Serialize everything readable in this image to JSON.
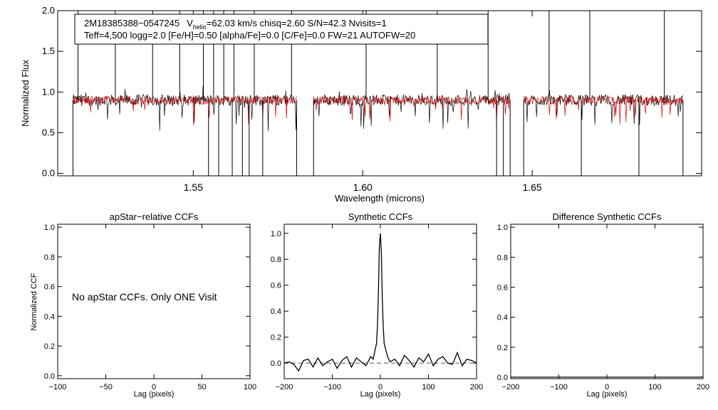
{
  "info_box": {
    "line1_id": "2M18385388−0547245",
    "line1_v": "V",
    "line1_sub": "helio",
    "line1_rest": "=62.03 km/s  chisq=2.60  S/N=42.3  Nvisits=1",
    "line2": "Teff=4,500 logg=2.0 [Fe/H]=0.50 [alpha/Fe]=0.0 [C/Fe]=0.0 FW=21 AUTOFW=20"
  },
  "colors": {
    "observed": "#000000",
    "model": "#e00000",
    "axis": "#000000",
    "zero_line": "#555555"
  },
  "chart_data": [
    {
      "type": "line",
      "name": "spectrum",
      "xlabel": "Wavelength (microns)",
      "ylabel": "Normalized Flux",
      "xlim": [
        1.51,
        1.7
      ],
      "ylim": [
        -0.03,
        2.0
      ],
      "xticks": [
        1.55,
        1.6,
        1.65
      ],
      "xtick_labels": [
        "1.55",
        "1.60",
        "1.65"
      ],
      "yticks": [
        0.0,
        0.5,
        1.0,
        1.5,
        2.0
      ],
      "ytick_labels": [
        "0.0",
        "0.5",
        "1.0",
        "1.5",
        "2.0"
      ],
      "chip_ranges": [
        [
          1.5145,
          1.5805
        ],
        [
          1.5855,
          1.6435
        ],
        [
          1.6475,
          1.6945
        ]
      ],
      "baseline_flux": 0.9,
      "series": [
        {
          "name": "observed",
          "color": "#000000",
          "noise": 0.07
        },
        {
          "name": "model",
          "color": "#e00000",
          "noise": 0.05
        }
      ],
      "spikes_up": [
        1.516,
        1.527,
        1.538,
        1.546,
        1.553,
        1.556,
        1.559,
        1.562,
        1.568,
        1.579,
        1.601,
        1.622,
        1.637,
        1.655,
        1.667,
        1.689
      ],
      "spikes_down": [
        1.5145,
        1.5545,
        1.5575,
        1.5615,
        1.5645,
        1.5665,
        1.5705,
        1.5805,
        1.5855,
        1.6395,
        1.6415,
        1.6435,
        1.6475,
        1.6645,
        1.6815,
        1.6945
      ]
    },
    {
      "type": "line",
      "name": "apstar-ccf",
      "title": "apStar−relative CCFs",
      "xlabel": "Lag (pixels)",
      "ylabel": "Normalized CCF",
      "xlim": [
        -100,
        100
      ],
      "ylim": [
        -0.02,
        1.02
      ],
      "xticks": [
        -100,
        -50,
        0,
        50,
        100
      ],
      "xtick_labels": [
        "−100",
        "−50",
        "0",
        "50",
        "100"
      ],
      "yticks": [
        0.0,
        0.2,
        0.4,
        0.6,
        0.8,
        1.0
      ],
      "ytick_labels": [
        "0.0",
        "0.2",
        "0.4",
        "0.6",
        "0.8",
        "1.0"
      ],
      "annotation": "No apStar CCFs.  Only ONE Visit",
      "series": []
    },
    {
      "type": "line",
      "name": "synthetic-ccf",
      "title": "Synthetic CCFs",
      "xlabel": "Lag (pixels)",
      "xlim": [
        -200,
        200
      ],
      "ylim": [
        -0.12,
        1.07
      ],
      "xticks": [
        -200,
        -100,
        0,
        100,
        200
      ],
      "xtick_labels": [
        "−200",
        "−100",
        "0",
        "100",
        "200"
      ],
      "yticks": [
        0.0,
        0.2,
        0.4,
        0.6,
        0.8,
        1.0
      ],
      "ytick_labels": [
        "0.0",
        "0.2",
        "0.4",
        "0.6",
        "0.8",
        "1.0"
      ],
      "zero_line": 0.0,
      "series": [
        {
          "name": "ccf",
          "x": [
            -200,
            -190,
            -180,
            -170,
            -160,
            -150,
            -140,
            -130,
            -120,
            -110,
            -100,
            -90,
            -80,
            -70,
            -60,
            -50,
            -40,
            -30,
            -20,
            -15,
            -10,
            -8,
            -6,
            -4,
            -2,
            0,
            2,
            4,
            6,
            8,
            10,
            15,
            20,
            30,
            40,
            50,
            60,
            70,
            80,
            90,
            100,
            110,
            120,
            130,
            140,
            150,
            160,
            170,
            180,
            190,
            200
          ],
          "y": [
            0.0,
            0.01,
            -0.01,
            -0.06,
            0.02,
            0.03,
            -0.03,
            0.04,
            -0.02,
            0.01,
            0.03,
            -0.04,
            0.02,
            0.05,
            -0.03,
            0.04,
            0.01,
            -0.02,
            0.05,
            0.03,
            0.12,
            0.15,
            0.3,
            0.55,
            0.9,
            1.0,
            0.85,
            0.5,
            0.28,
            0.15,
            0.12,
            0.05,
            0.01,
            0.03,
            -0.02,
            0.06,
            0.02,
            -0.03,
            0.04,
            0.01,
            0.07,
            -0.02,
            0.03,
            0.05,
            0.0,
            -0.01,
            0.08,
            -0.02,
            0.03,
            0.02,
            0.0
          ]
        }
      ]
    },
    {
      "type": "line",
      "name": "difference-ccf",
      "title": "Difference Synthetic CCFs",
      "xlabel": "Lag (pixels)",
      "xlim": [
        -200,
        200
      ],
      "ylim": [
        -0.01,
        1.02
      ],
      "xticks": [
        -200,
        -100,
        0,
        100,
        200
      ],
      "xtick_labels": [
        "−200",
        "−100",
        "0",
        "100",
        "200"
      ],
      "yticks": [
        0.0,
        0.2,
        0.4,
        0.6,
        0.8,
        1.0
      ],
      "ytick_labels": [
        "0.0",
        "0.2",
        "0.4",
        "0.6",
        "0.8",
        "1.0"
      ],
      "series": [
        {
          "name": "difference",
          "x": [
            -200,
            200
          ],
          "y": [
            0.0,
            0.0
          ]
        }
      ]
    }
  ]
}
